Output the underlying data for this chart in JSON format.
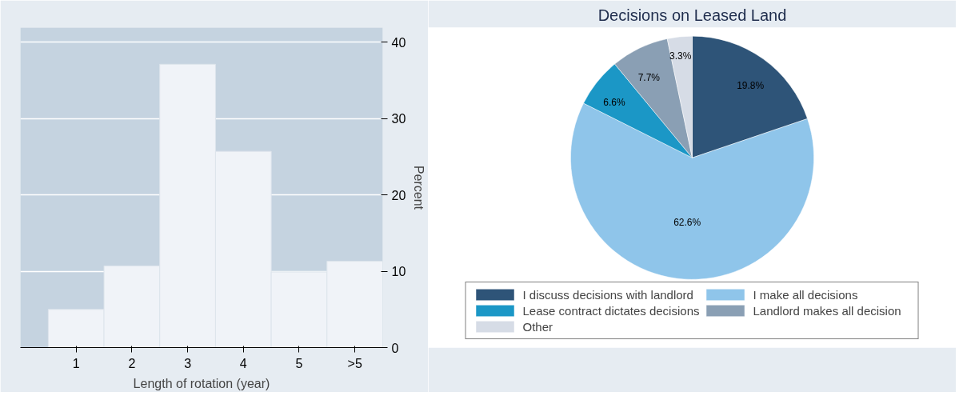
{
  "chart_data": [
    {
      "type": "bar",
      "xlabel": "Length of rotation (year)",
      "ylabel": "Percent",
      "categories": [
        "1",
        "2",
        "3",
        "4",
        "5",
        ">5"
      ],
      "values": [
        5.0,
        10.7,
        37.1,
        25.7,
        9.9,
        11.3
      ],
      "color": "#f0f3f8",
      "ylim": [
        0,
        41.9
      ],
      "yticks": [
        0,
        10,
        20,
        30,
        40
      ],
      "grid": "y",
      "legend": false
    },
    {
      "type": "pie",
      "title": "Decisions on Leased Land",
      "categories": [
        "I discuss decisions with landlord",
        "I make all decisions",
        "Lease contract dictates decisions",
        "Landlord makes all decision",
        "Other"
      ],
      "values": [
        19.8,
        62.6,
        6.6,
        7.7,
        3.3
      ],
      "colors": [
        "#2e5478",
        "#8fc5ea",
        "#1b97c6",
        "#8a9fb4",
        "#d6dce6"
      ],
      "value_labels": [
        "19.8%",
        "62.6%",
        "6.6%",
        "7.7%",
        "3.3%"
      ],
      "legend": "bottom"
    }
  ]
}
